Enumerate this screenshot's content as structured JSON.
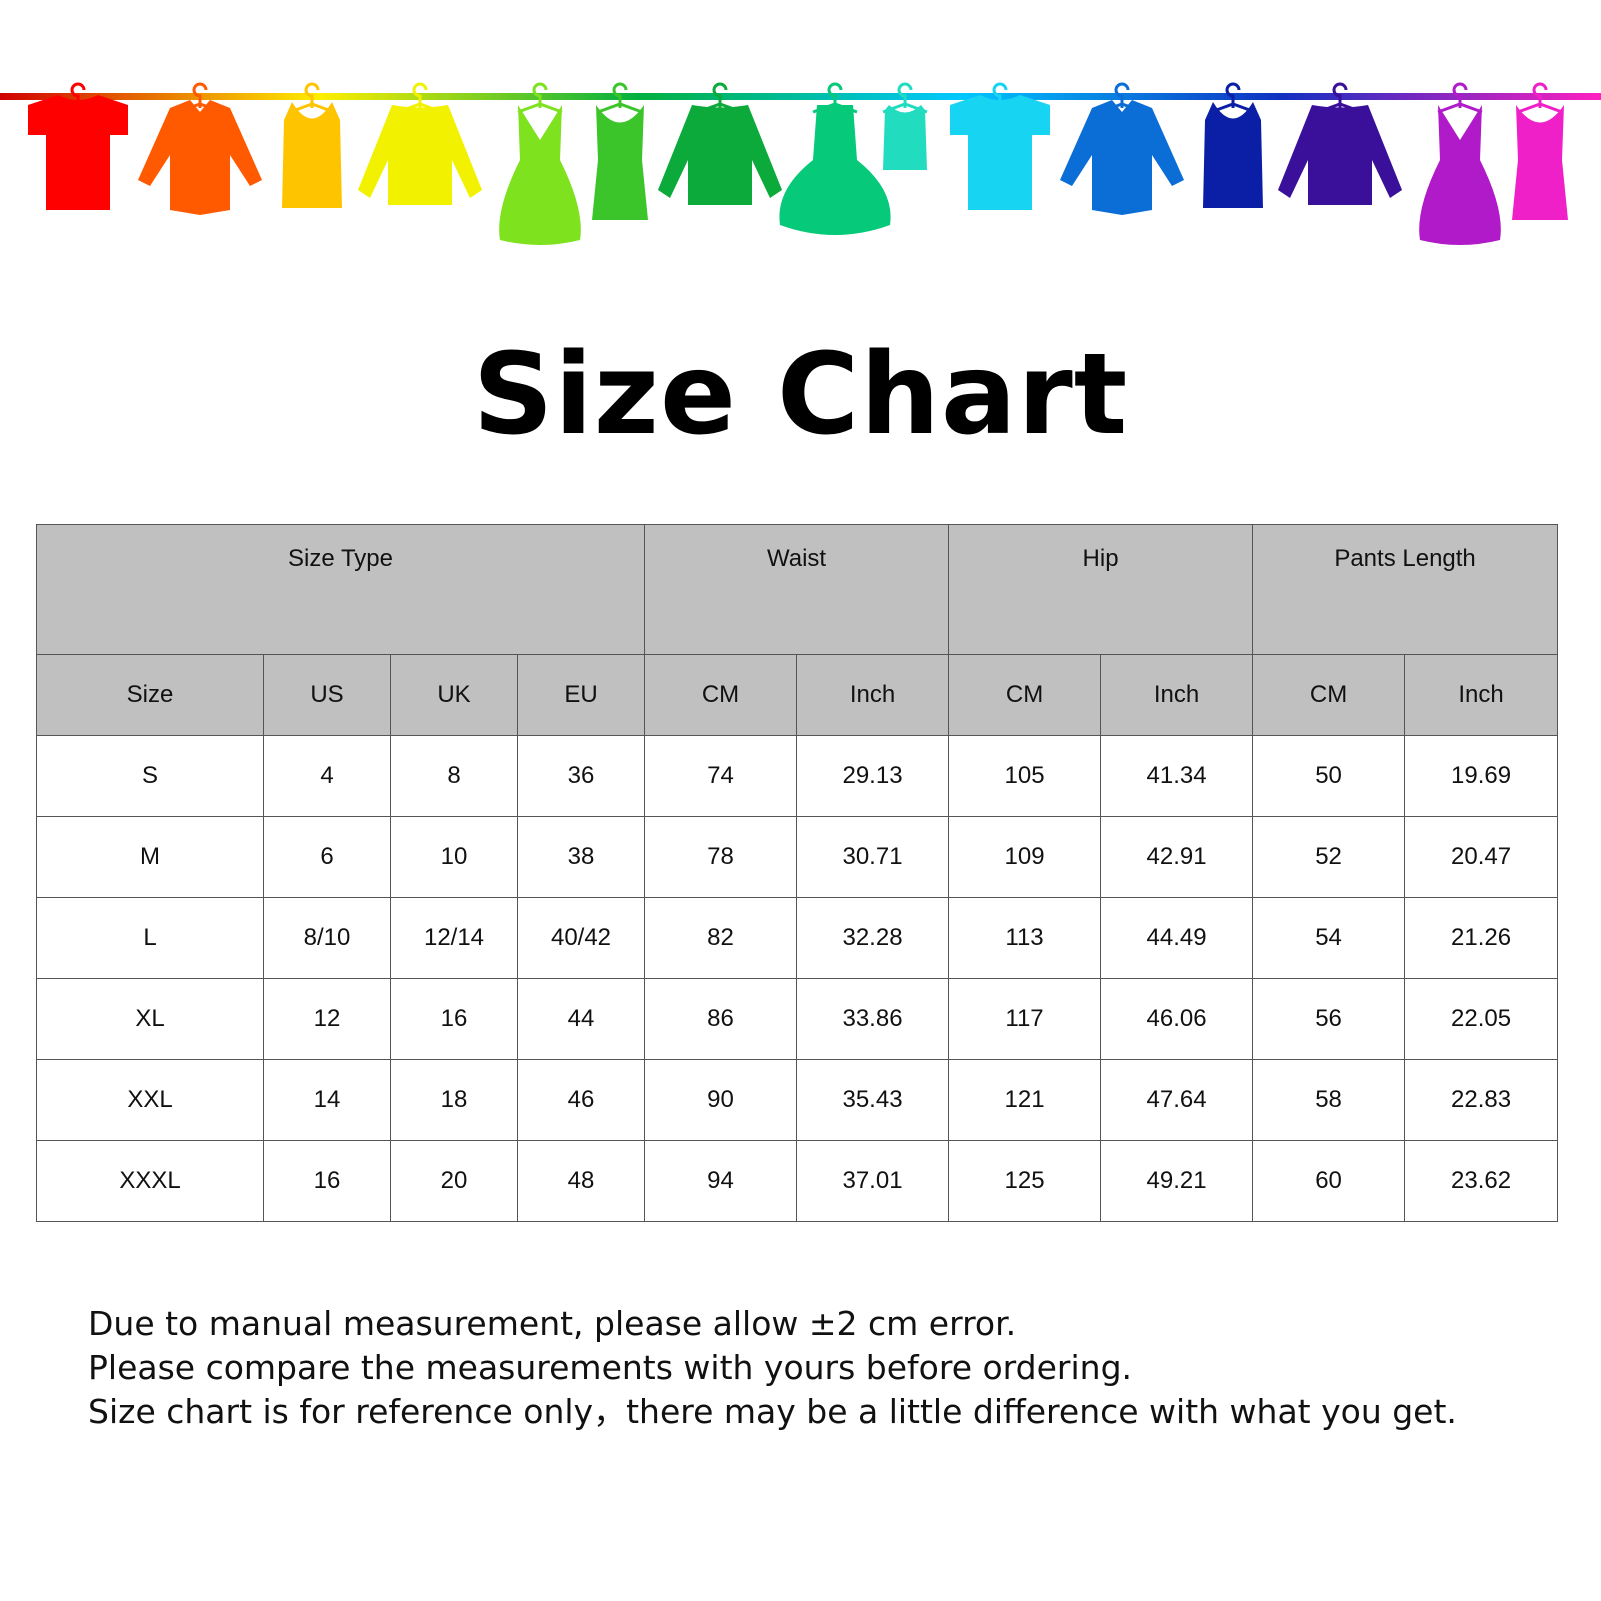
{
  "banner": {
    "colors": [
      "#ff0000",
      "#ff5a00",
      "#ffc400",
      "#f2f200",
      "#7ee21e",
      "#3cc52a",
      "#0caa3a",
      "#06c97a",
      "#22dcc0",
      "#16d4f2",
      "#0a6ed6",
      "#0a1fa6",
      "#3a0f9a",
      "#b01ac8",
      "#f020c8"
    ],
    "rod_gradient": [
      "#d00000",
      "#ffee00",
      "#00b040",
      "#00c8ff",
      "#1030c0",
      "#ff20c0"
    ]
  },
  "title": "Size Chart",
  "table": {
    "group_headers": [
      {
        "label": "Size Type",
        "span": 4
      },
      {
        "label": "Waist",
        "span": 2
      },
      {
        "label": "Hip",
        "span": 2
      },
      {
        "label": "Pants Length",
        "span": 2
      }
    ],
    "sub_headers": [
      "Size",
      "US",
      "UK",
      "EU",
      "CM",
      "Inch",
      "CM",
      "Inch",
      "CM",
      "Inch"
    ],
    "rows": [
      [
        "S",
        "4",
        "8",
        "36",
        "74",
        "29.13",
        "105",
        "41.34",
        "50",
        "19.69"
      ],
      [
        "M",
        "6",
        "10",
        "38",
        "78",
        "30.71",
        "109",
        "42.91",
        "52",
        "20.47"
      ],
      [
        "L",
        "8/10",
        "12/14",
        "40/42",
        "82",
        "32.28",
        "113",
        "44.49",
        "54",
        "21.26"
      ],
      [
        "XL",
        "12",
        "16",
        "44",
        "86",
        "33.86",
        "117",
        "46.06",
        "56",
        "22.05"
      ],
      [
        "XXL",
        "14",
        "18",
        "46",
        "90",
        "35.43",
        "121",
        "47.64",
        "58",
        "22.83"
      ],
      [
        "XXXL",
        "16",
        "20",
        "48",
        "94",
        "37.01",
        "125",
        "49.21",
        "60",
        "23.62"
      ]
    ]
  },
  "notes": [
    "Due to manual measurement, please allow ±2 cm error.",
    "Please compare the measurements with yours before ordering.",
    "Size chart is for reference only，there may be a little difference with what you get."
  ]
}
